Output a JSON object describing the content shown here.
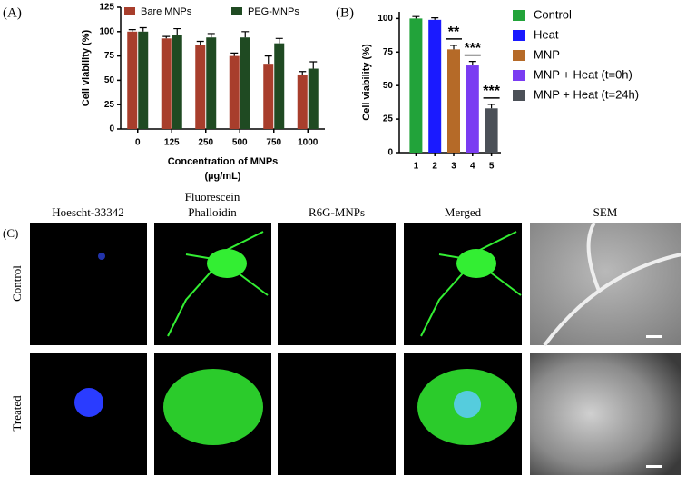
{
  "chart_data": [
    {
      "type": "bar",
      "panel_label": "(A)",
      "ylabel": "Cell viability (%)",
      "xlabel": [
        "Concentration of MNPs",
        "(µg/mL)"
      ],
      "categories": [
        "0",
        "125",
        "250",
        "500",
        "750",
        "1000"
      ],
      "series": [
        {
          "name": "Bare MNPs",
          "color": "#a83e2c",
          "values": [
            100,
            93,
            86,
            75,
            67,
            56
          ],
          "errors": [
            2,
            2,
            4,
            3,
            8,
            3
          ]
        },
        {
          "name": "PEG-MNPs",
          "color": "#1f4a22",
          "values": [
            100,
            97,
            94,
            94,
            88,
            62
          ],
          "errors": [
            4,
            6,
            4,
            6,
            5,
            7
          ]
        }
      ],
      "ylim": [
        0,
        125
      ],
      "yticks": [
        0,
        25,
        50,
        75,
        100,
        125
      ],
      "legend": "top"
    },
    {
      "type": "bar",
      "panel_label": "(B)",
      "ylabel": "Cell viability (%)",
      "categories": [
        "1",
        "2",
        "3",
        "4",
        "5"
      ],
      "values": [
        100,
        99,
        77,
        65,
        33
      ],
      "errors": [
        1.5,
        1.5,
        3,
        3,
        3
      ],
      "colors": [
        "#22a33a",
        "#1a1aff",
        "#b56a28",
        "#7a3cf2",
        "#4b5057"
      ],
      "legend_labels": [
        "Control",
        "Heat",
        "MNP",
        "MNP + Heat (t=0h)",
        "MNP + Heat (t=24h)"
      ],
      "significance": [
        null,
        null,
        "**",
        "***",
        "***"
      ],
      "ylim": [
        0,
        105
      ],
      "yticks": [
        0,
        25,
        50,
        75,
        100
      ],
      "legend": "right"
    }
  ],
  "panel_c": {
    "label": "(C)",
    "columns": [
      [
        "Hoescht-33342"
      ],
      [
        "Fluorescein",
        "Phalloidin"
      ],
      [
        "R6G-MNPs"
      ],
      [
        "Merged"
      ],
      [
        "SEM"
      ]
    ],
    "rows": [
      "Control",
      "Treated"
    ]
  }
}
